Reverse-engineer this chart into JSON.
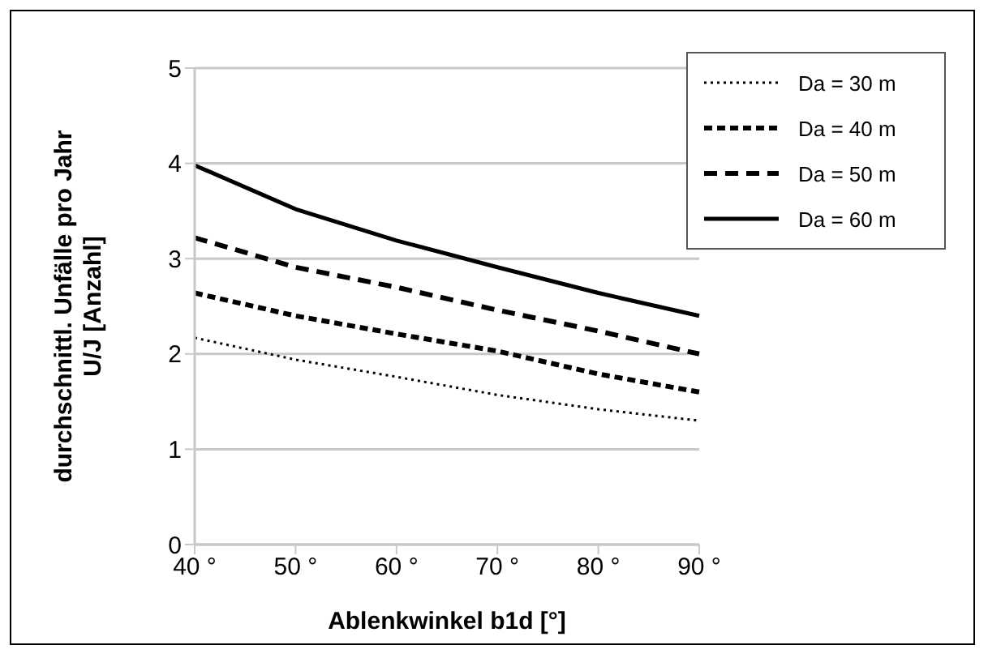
{
  "chart_data": {
    "type": "line",
    "xlabel": "Ablenkwinkel b1d [°]",
    "ylabel": "durchschnittl. Unfälle pro Jahr\nU/J [Anzahl]",
    "categories": [
      "40 °",
      "50 °",
      "60 °",
      "70 °",
      "80 °",
      "90 °"
    ],
    "series": [
      {
        "name": "Da = 30 m",
        "color": "#000000",
        "line_style": "dotted",
        "values": [
          2.17,
          1.94,
          1.76,
          1.57,
          1.42,
          1.3
        ]
      },
      {
        "name": "Da = 40 m",
        "color": "#000000",
        "line_style": "dashed",
        "values": [
          2.64,
          2.4,
          2.21,
          2.03,
          1.79,
          1.6
        ]
      },
      {
        "name": "Da = 50 m",
        "color": "#000000",
        "line_style": "longdash",
        "values": [
          3.22,
          2.91,
          2.7,
          2.46,
          2.24,
          2.0
        ]
      },
      {
        "name": "Da = 60 m",
        "color": "#000000",
        "line_style": "solid",
        "values": [
          3.98,
          3.52,
          3.19,
          2.91,
          2.64,
          2.4
        ]
      }
    ],
    "ylim": [
      0,
      5
    ],
    "yticks": [
      0,
      1,
      2,
      3,
      4,
      5
    ],
    "grid": "y",
    "legend": "top right",
    "marker": "none"
  }
}
